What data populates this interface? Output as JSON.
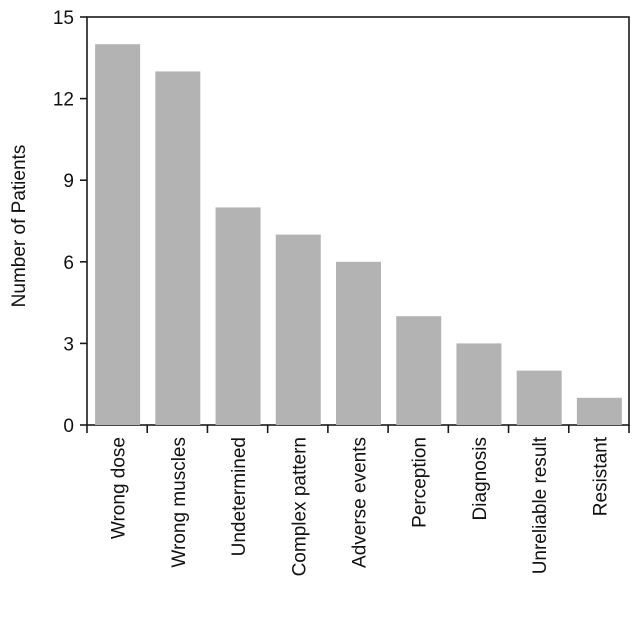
{
  "chart_data": {
    "type": "bar",
    "categories": [
      "Wrong dose",
      "Wrong muscles",
      "Undetermined",
      "Complex pattern",
      "Adverse events",
      "Perception",
      "Diagnosis",
      "Unreliable result",
      "Resistant"
    ],
    "values": [
      14,
      13,
      8,
      7,
      6,
      4,
      3,
      2,
      1
    ],
    "ylabel": "Number of Patients",
    "xlabel": "",
    "title": "",
    "ylim": [
      0,
      15
    ],
    "yticks": [
      0,
      3,
      6,
      9,
      12,
      15
    ],
    "grid": false,
    "legend": "none",
    "bar_color": "#b3b3b3",
    "axis_color": "#1a1a1a"
  }
}
